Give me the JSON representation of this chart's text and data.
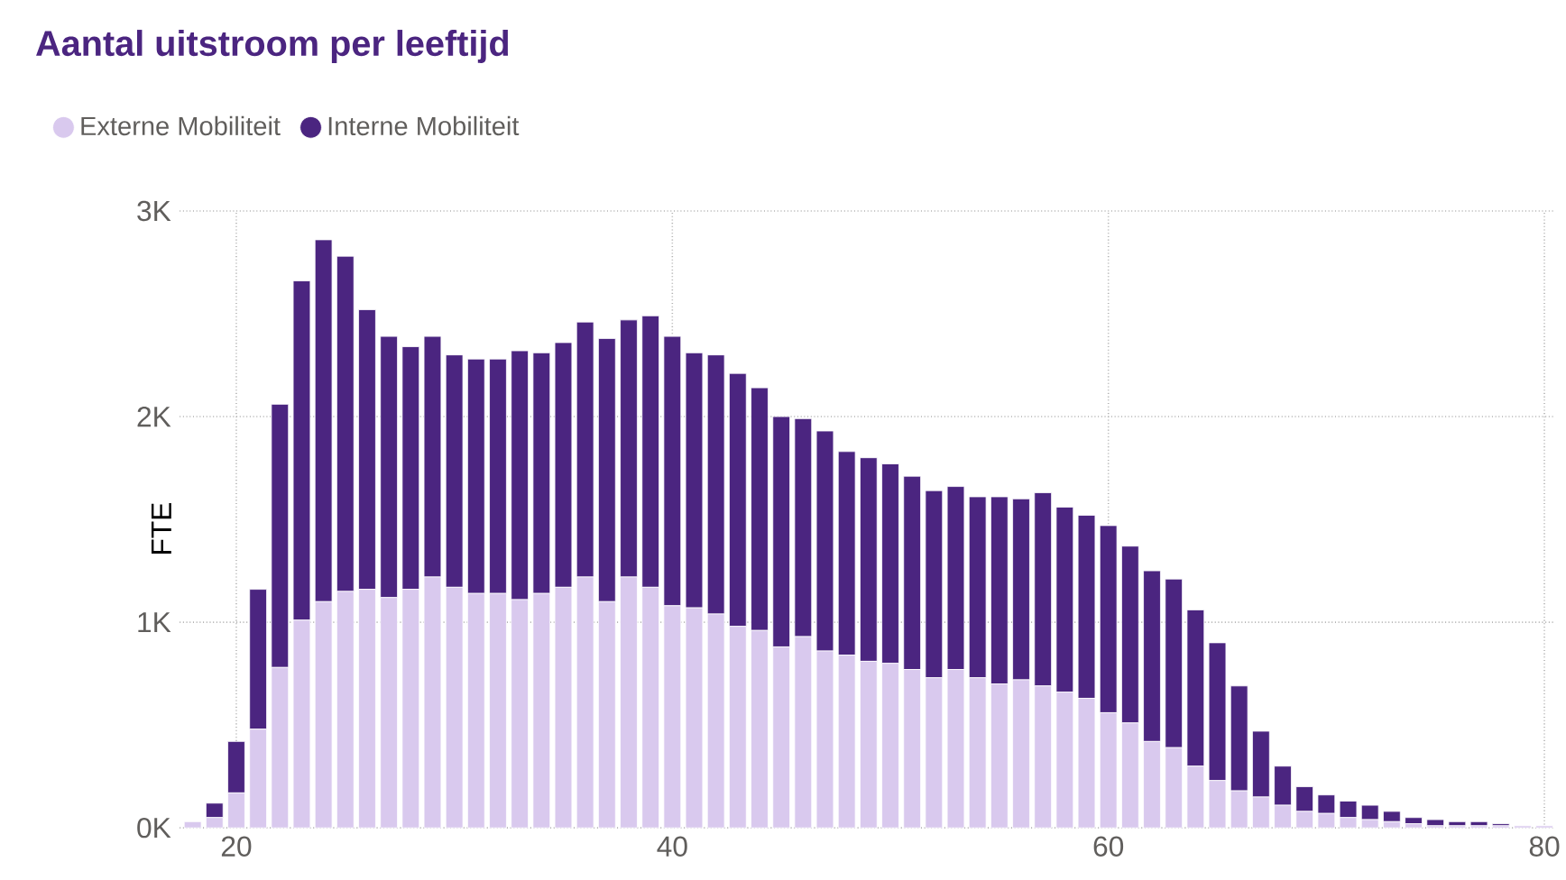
{
  "chart_data": {
    "type": "bar",
    "stacked": true,
    "title": "Aantal uitstroom per leeftijd",
    "ylabel": "FTE",
    "x": [
      18,
      19,
      20,
      21,
      22,
      23,
      24,
      25,
      26,
      27,
      28,
      29,
      30,
      31,
      32,
      33,
      34,
      35,
      36,
      37,
      38,
      39,
      40,
      41,
      42,
      43,
      44,
      45,
      46,
      47,
      48,
      49,
      50,
      51,
      52,
      53,
      54,
      55,
      56,
      57,
      58,
      59,
      60,
      61,
      62,
      63,
      64,
      65,
      66,
      67,
      68,
      69,
      70,
      71,
      72,
      73,
      74,
      75,
      76,
      77,
      78,
      79,
      80
    ],
    "series": [
      {
        "name": "Externe Mobiliteit",
        "color": "#d9c9ee",
        "values": [
          30,
          50,
          170,
          480,
          780,
          1010,
          1100,
          1150,
          1160,
          1120,
          1160,
          1220,
          1170,
          1140,
          1140,
          1110,
          1140,
          1170,
          1220,
          1100,
          1220,
          1170,
          1080,
          1070,
          1040,
          980,
          960,
          880,
          930,
          860,
          840,
          810,
          800,
          770,
          730,
          770,
          730,
          700,
          720,
          690,
          660,
          630,
          560,
          510,
          420,
          390,
          300,
          230,
          180,
          150,
          110,
          80,
          70,
          50,
          40,
          30,
          20,
          10,
          10,
          10,
          10,
          10,
          10
        ]
      },
      {
        "name": "Interne Mobiliteit",
        "color": "#4b2580",
        "values": [
          0,
          70,
          250,
          680,
          1280,
          1650,
          1760,
          1630,
          1360,
          1270,
          1180,
          1170,
          1130,
          1140,
          1140,
          1210,
          1170,
          1190,
          1240,
          1280,
          1250,
          1320,
          1310,
          1240,
          1260,
          1230,
          1180,
          1120,
          1060,
          1070,
          990,
          990,
          970,
          940,
          910,
          890,
          880,
          910,
          880,
          940,
          900,
          890,
          910,
          860,
          830,
          820,
          760,
          670,
          510,
          320,
          190,
          120,
          90,
          80,
          70,
          50,
          30,
          30,
          20,
          20,
          10,
          0,
          0
        ]
      }
    ],
    "xlim": [
      17.4,
      80.5
    ],
    "ylim": [
      0,
      3000
    ],
    "xticks": [
      20,
      40,
      60,
      80
    ],
    "yticks": [
      {
        "value": 0,
        "label": "0K"
      },
      {
        "value": 1000,
        "label": "1K"
      },
      {
        "value": 2000,
        "label": "2K"
      },
      {
        "value": 3000,
        "label": "3K"
      }
    ],
    "grid": true,
    "legend": "top left"
  }
}
